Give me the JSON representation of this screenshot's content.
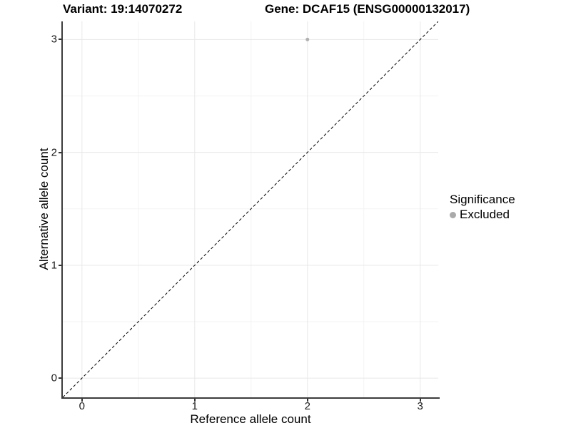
{
  "header": {
    "variant_title": "Variant: 19:14070272",
    "gene_title": "Gene: DCAF15 (ENSG00000132017)"
  },
  "axes": {
    "x_label": "Reference allele count",
    "y_label": "Alternative allele count"
  },
  "legend": {
    "title": "Significance",
    "items": [
      {
        "label": "Excluded",
        "color": "#aaaaaa"
      }
    ]
  },
  "chart_data": {
    "type": "scatter",
    "title": "Variant: 19:14070272 / Gene: DCAF15 (ENSG00000132017)",
    "xlabel": "Reference allele count",
    "ylabel": "Alternative allele count",
    "xticks": [
      0,
      1,
      2,
      3
    ],
    "yticks": [
      0,
      1,
      2,
      3
    ],
    "xlim": [
      -0.17,
      3.16
    ],
    "ylim": [
      -0.17,
      3.16
    ],
    "grid": {
      "major_color": "#e8e8e8",
      "minor_color": "#f3f3f3",
      "minor": true
    },
    "series": [
      {
        "name": "Excluded",
        "color": "#b0b0b0",
        "points": [
          {
            "x": 2,
            "y": 3
          }
        ]
      }
    ],
    "reference_line": {
      "type": "identity",
      "equation": "y = x",
      "style": "dashed",
      "color": "#000000"
    },
    "legend_position": "right",
    "legend_title": "Significance"
  }
}
